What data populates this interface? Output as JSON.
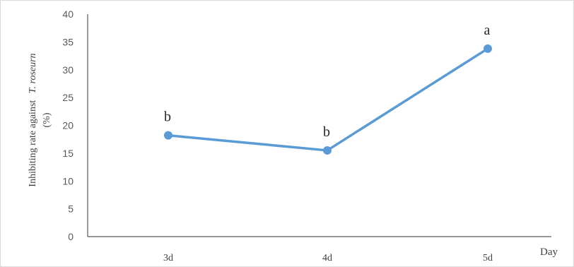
{
  "chart_data": {
    "type": "line",
    "categories": [
      "3d",
      "4d",
      "5d"
    ],
    "series": [
      {
        "values": [
          18.2,
          15.5,
          33.8
        ],
        "color": "#5b9bd5"
      }
    ],
    "data_labels": [
      "b",
      "b",
      "a"
    ],
    "xlabel": "Day",
    "ylabel_prefix": "Inhibiting rate against",
    "ylabel_species": "T. roseurn",
    "ylabel_unit": "(%)",
    "yticks": [
      "0",
      "5",
      "10",
      "15",
      "20",
      "25",
      "30",
      "35",
      "40"
    ],
    "ylim": [
      0,
      40
    ],
    "grid": false,
    "legend": "none"
  }
}
